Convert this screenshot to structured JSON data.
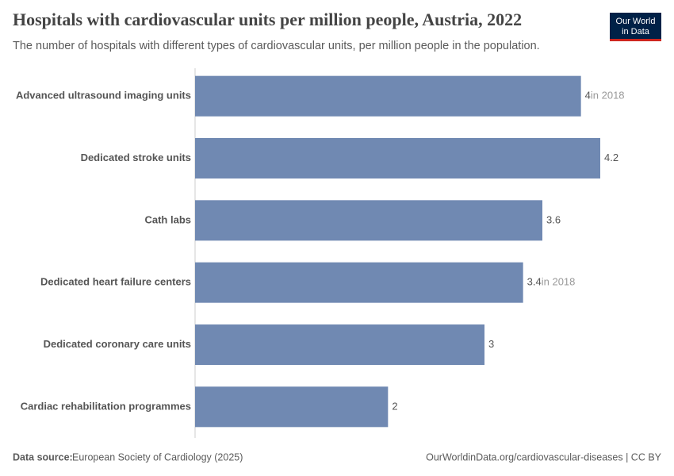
{
  "chart_data": {
    "type": "bar",
    "orientation": "horizontal",
    "title": "Hospitals with cardiovascular units per million people, Austria, 2022",
    "subtitle": "The number of hospitals with different types of cardiovascular units, per million people in the population.",
    "categories": [
      "Advanced ultrasound imaging units",
      "Dedicated stroke units",
      "Cath labs",
      "Dedicated heart failure centers",
      "Dedicated coronary care units",
      "Cardiac rehabilitation programmes"
    ],
    "values": [
      4,
      4.2,
      3.6,
      3.4,
      3,
      2
    ],
    "notes": [
      "in 2018",
      null,
      null,
      "in 2018",
      null,
      null
    ],
    "color": "#7089b2",
    "xlim": [
      0,
      4.2
    ],
    "source_label": "Data source:",
    "source": "European Society of Cardiology (2025)",
    "url": "OurWorldinData.org/cardiovascular-diseases | CC BY",
    "logo": [
      "Our World",
      "in Data"
    ]
  }
}
